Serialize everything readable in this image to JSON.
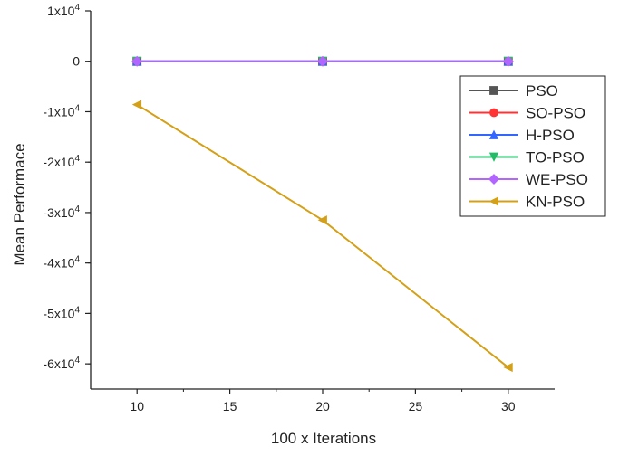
{
  "chart_data": {
    "type": "line",
    "title": "",
    "xlabel": "100 x Iterations",
    "ylabel": "Mean Performace",
    "x": [
      10,
      20,
      30
    ],
    "xlim": [
      7.5,
      32.5
    ],
    "ylim": [
      -65000,
      10000
    ],
    "x_ticks": [
      10,
      15,
      20,
      25,
      30
    ],
    "x_tick_labels": [
      "10",
      "15",
      "20",
      "25",
      "30"
    ],
    "y_ticks": [
      10000,
      0,
      -10000,
      -20000,
      -30000,
      -40000,
      -50000,
      -60000
    ],
    "y_tick_labels": [
      {
        "mantissa": "1x10",
        "exp": "4"
      },
      {
        "mantissa": "0",
        "exp": ""
      },
      {
        "mantissa": "-1x10",
        "exp": "4"
      },
      {
        "mantissa": "-2x10",
        "exp": "4"
      },
      {
        "mantissa": "-3x10",
        "exp": "4"
      },
      {
        "mantissa": "-4x10",
        "exp": "4"
      },
      {
        "mantissa": "-5x10",
        "exp": "4"
      },
      {
        "mantissa": "-6x10",
        "exp": "4"
      }
    ],
    "grid": false,
    "legend_position": "right",
    "series": [
      {
        "name": "PSO",
        "values": [
          0,
          0,
          0
        ],
        "color": "#555555",
        "marker": "square"
      },
      {
        "name": "SO-PSO",
        "values": [
          0,
          0,
          0
        ],
        "color": "#ff3333",
        "marker": "circle"
      },
      {
        "name": "H-PSO",
        "values": [
          0,
          0,
          0
        ],
        "color": "#3366ff",
        "marker": "triangle-up"
      },
      {
        "name": "TO-PSO",
        "values": [
          0,
          0,
          0
        ],
        "color": "#22bb66",
        "marker": "triangle-down"
      },
      {
        "name": "WE-PSO",
        "values": [
          0,
          0,
          0
        ],
        "color": "#b366ff",
        "marker": "diamond"
      },
      {
        "name": "KN-PSO",
        "values": [
          -8600,
          -31500,
          -60700
        ],
        "color": "#d4a017",
        "marker": "triangle-left"
      }
    ]
  }
}
